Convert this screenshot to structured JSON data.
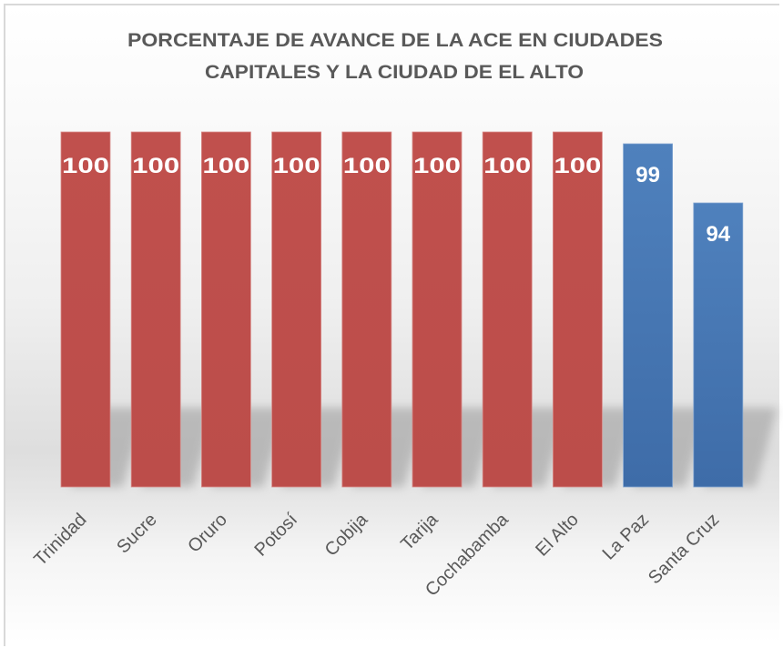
{
  "chart_data": {
    "type": "bar",
    "title": "PORCENTAJE DE AVANCE DE LA ACE EN CIUDADES CAPITALES Y LA CIUDAD DE EL ALTO",
    "title_lines": [
      "PORCENTAJE DE AVANCE DE LA ACE EN CIUDADES",
      "CAPITALES Y LA CIUDAD DE EL ALTO"
    ],
    "categories": [
      "Trinidad",
      "Sucre",
      "Oruro",
      "Potosí",
      "Cobija",
      "Tarija",
      "Cochabamba",
      "El Alto",
      "La Paz",
      "Santa Cruz"
    ],
    "values": [
      100,
      100,
      100,
      100,
      100,
      100,
      100,
      100,
      99,
      94
    ],
    "data_labels": [
      "100",
      "100",
      "100",
      "100",
      "100",
      "100",
      "100",
      "100",
      "99",
      "94"
    ],
    "bar_colors": [
      "#C0504D",
      "#C0504D",
      "#C0504D",
      "#C0504D",
      "#C0504D",
      "#C0504D",
      "#C0504D",
      "#C0504D",
      "#4F81BD",
      "#4F81BD"
    ],
    "xlabel": "",
    "ylabel": "",
    "ylim": [
      70,
      100
    ],
    "grid": false,
    "legend": "none"
  }
}
